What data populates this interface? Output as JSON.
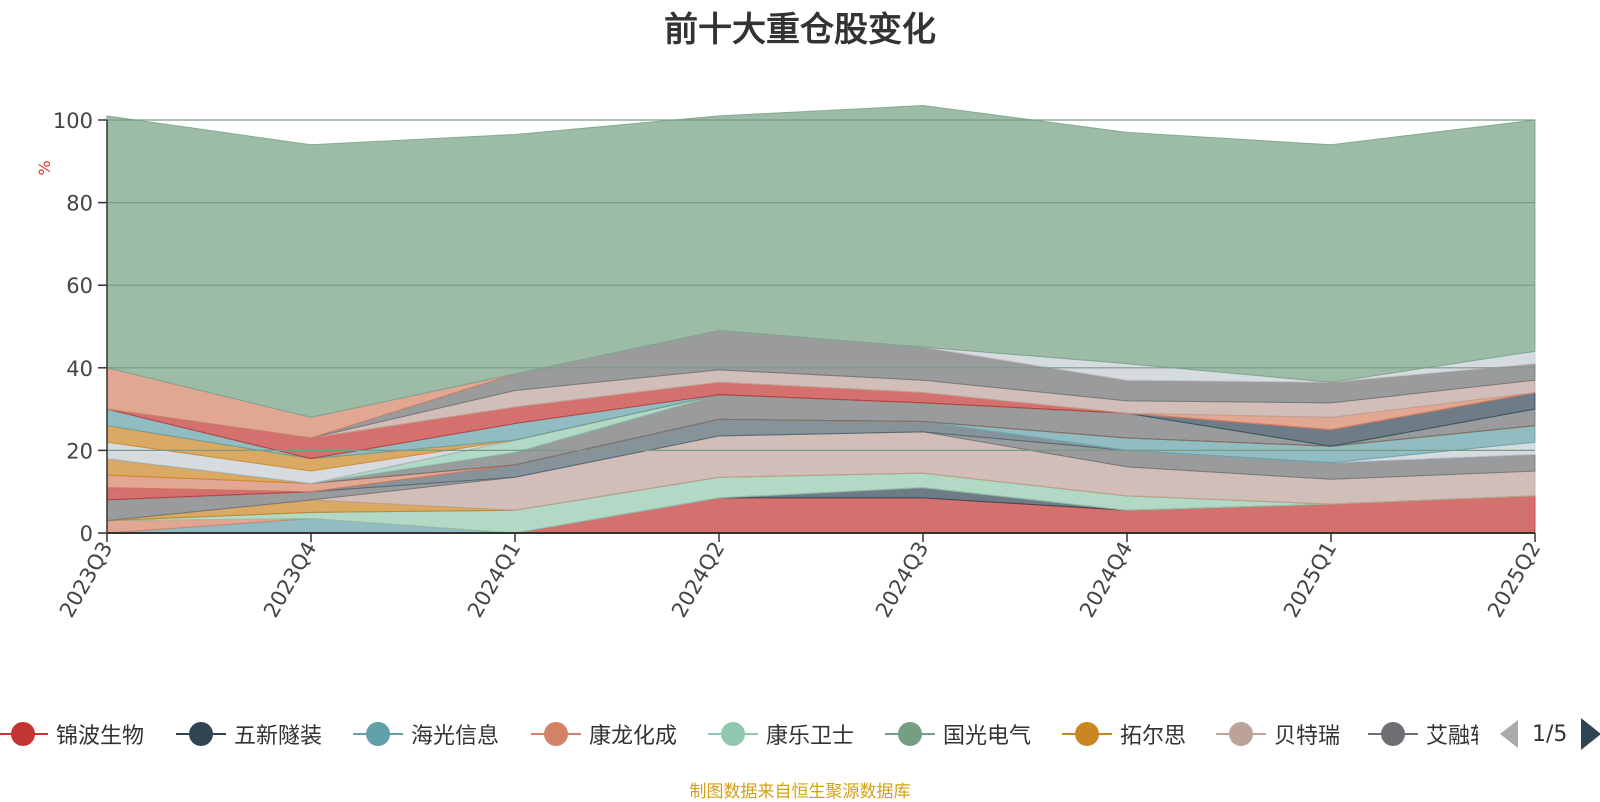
{
  "title": "前十大重仓股变化",
  "source_note": "制图数据来自恒生聚源数据库",
  "legend": {
    "items": [
      {
        "name": "锦波生物",
        "color": "#c23531"
      },
      {
        "name": "五新隧装",
        "color": "#2f4554"
      },
      {
        "name": "海光信息",
        "color": "#61a0a8"
      },
      {
        "name": "康龙化成",
        "color": "#d48265"
      },
      {
        "name": "康乐卫士",
        "color": "#91c7ae"
      },
      {
        "name": "国光电气",
        "color": "#749f83"
      },
      {
        "name": "拓尔思",
        "color": "#ca8622"
      },
      {
        "name": "贝特瑞",
        "color": "#bda29a"
      },
      {
        "name": "艾融软件",
        "color": "#6e7074"
      }
    ],
    "page": "1/5"
  },
  "chart_data": {
    "type": "area",
    "stacked": true,
    "title": "前十大重仓股变化",
    "ylabel": "%",
    "ylim": [
      0,
      100
    ],
    "yticks": [
      0,
      20,
      40,
      60,
      80,
      100
    ],
    "grid": true,
    "legend_position": "bottom",
    "categories": [
      "2023Q3",
      "2023Q4",
      "2024Q1",
      "2024Q2",
      "2024Q3",
      "2024Q4",
      "2025Q1",
      "2025Q2"
    ],
    "series": [
      {
        "color": "#c23531",
        "values": [
          0,
          0,
          0,
          8.5,
          8.5,
          5.5,
          7,
          9
        ]
      },
      {
        "color": "#2f4554",
        "values": [
          0,
          0,
          0,
          0,
          2.5,
          0,
          0,
          0
        ]
      },
      {
        "color": "#61a0a8",
        "values": [
          0,
          3.5,
          0,
          0,
          0,
          0,
          0,
          0
        ]
      },
      {
        "color": "#d48265",
        "values": [
          3,
          0,
          0,
          0,
          0,
          0,
          0,
          0
        ]
      },
      {
        "color": "#91c7ae",
        "values": [
          0,
          1.5,
          5.5,
          5,
          3.5,
          3.5,
          0,
          0
        ]
      },
      {
        "color": "#749f83",
        "values": [
          0,
          0,
          0,
          0,
          0,
          0,
          0,
          0
        ]
      },
      {
        "color": "#ca8622",
        "values": [
          0,
          3,
          0,
          0,
          0,
          0,
          0,
          0
        ]
      },
      {
        "color": "#bda29a",
        "values": [
          0,
          0,
          8,
          10,
          10,
          7,
          6,
          6
        ]
      },
      {
        "color": "#6e7074",
        "values": [
          5,
          2,
          0,
          0,
          0,
          4,
          4,
          4
        ]
      },
      {
        "color": "#546570",
        "values": [
          0,
          0,
          3,
          4,
          2.5,
          0,
          0,
          0
        ]
      },
      {
        "color": "#c4ccd3",
        "values": [
          0,
          0,
          0,
          0,
          0,
          0,
          0,
          3
        ]
      },
      {
        "color": "#61a0a8",
        "values": [
          0,
          0,
          0,
          0,
          0,
          3,
          4,
          4
        ]
      },
      {
        "color": "#c23531",
        "values": [
          3,
          0,
          0,
          0,
          0,
          0,
          0,
          0
        ]
      },
      {
        "color": "#d48265",
        "values": [
          3,
          2,
          0,
          0,
          0,
          0,
          0,
          0
        ]
      },
      {
        "color": "#ca8622",
        "values": [
          4,
          0,
          0,
          0,
          0,
          0,
          0,
          0
        ]
      },
      {
        "color": "#6e7074",
        "values": [
          0,
          0,
          3,
          6,
          4.5,
          6,
          0,
          4
        ]
      },
      {
        "color": "#91c7ae",
        "values": [
          0,
          0,
          3,
          0,
          0,
          0,
          0,
          0
        ]
      },
      {
        "color": "#2f4554",
        "values": [
          0,
          0,
          0,
          0,
          0,
          0,
          4,
          4
        ]
      },
      {
        "color": "#c4ccd3",
        "values": [
          4,
          3,
          0,
          0,
          0,
          0,
          0,
          0
        ]
      },
      {
        "color": "#ca8622",
        "values": [
          4,
          3,
          0,
          0,
          0,
          0,
          0,
          0
        ]
      },
      {
        "color": "#61a0a8",
        "values": [
          4,
          0,
          4,
          0,
          0,
          0,
          0,
          0
        ]
      },
      {
        "color": "#c23531",
        "values": [
          0,
          5,
          4,
          3,
          2.5,
          0,
          0,
          0
        ]
      },
      {
        "color": "#d48265",
        "values": [
          0,
          0,
          0,
          0,
          0,
          0,
          3,
          0
        ]
      },
      {
        "color": "#bda29a",
        "values": [
          0,
          0,
          4,
          3,
          3,
          3,
          3.5,
          3
        ]
      },
      {
        "color": "#6e7074",
        "values": [
          0,
          0,
          4,
          9.5,
          8,
          5,
          5,
          4
        ]
      },
      {
        "color": "#d48265",
        "values": [
          10,
          5,
          0,
          0,
          0,
          0,
          0,
          0
        ]
      },
      {
        "color": "#c4ccd3",
        "values": [
          0,
          0,
          0,
          0,
          0,
          4,
          0,
          3
        ]
      },
      {
        "color": "#749f83",
        "values": [
          61,
          66,
          58,
          52,
          58.5,
          56,
          57.5,
          56
        ]
      }
    ]
  }
}
